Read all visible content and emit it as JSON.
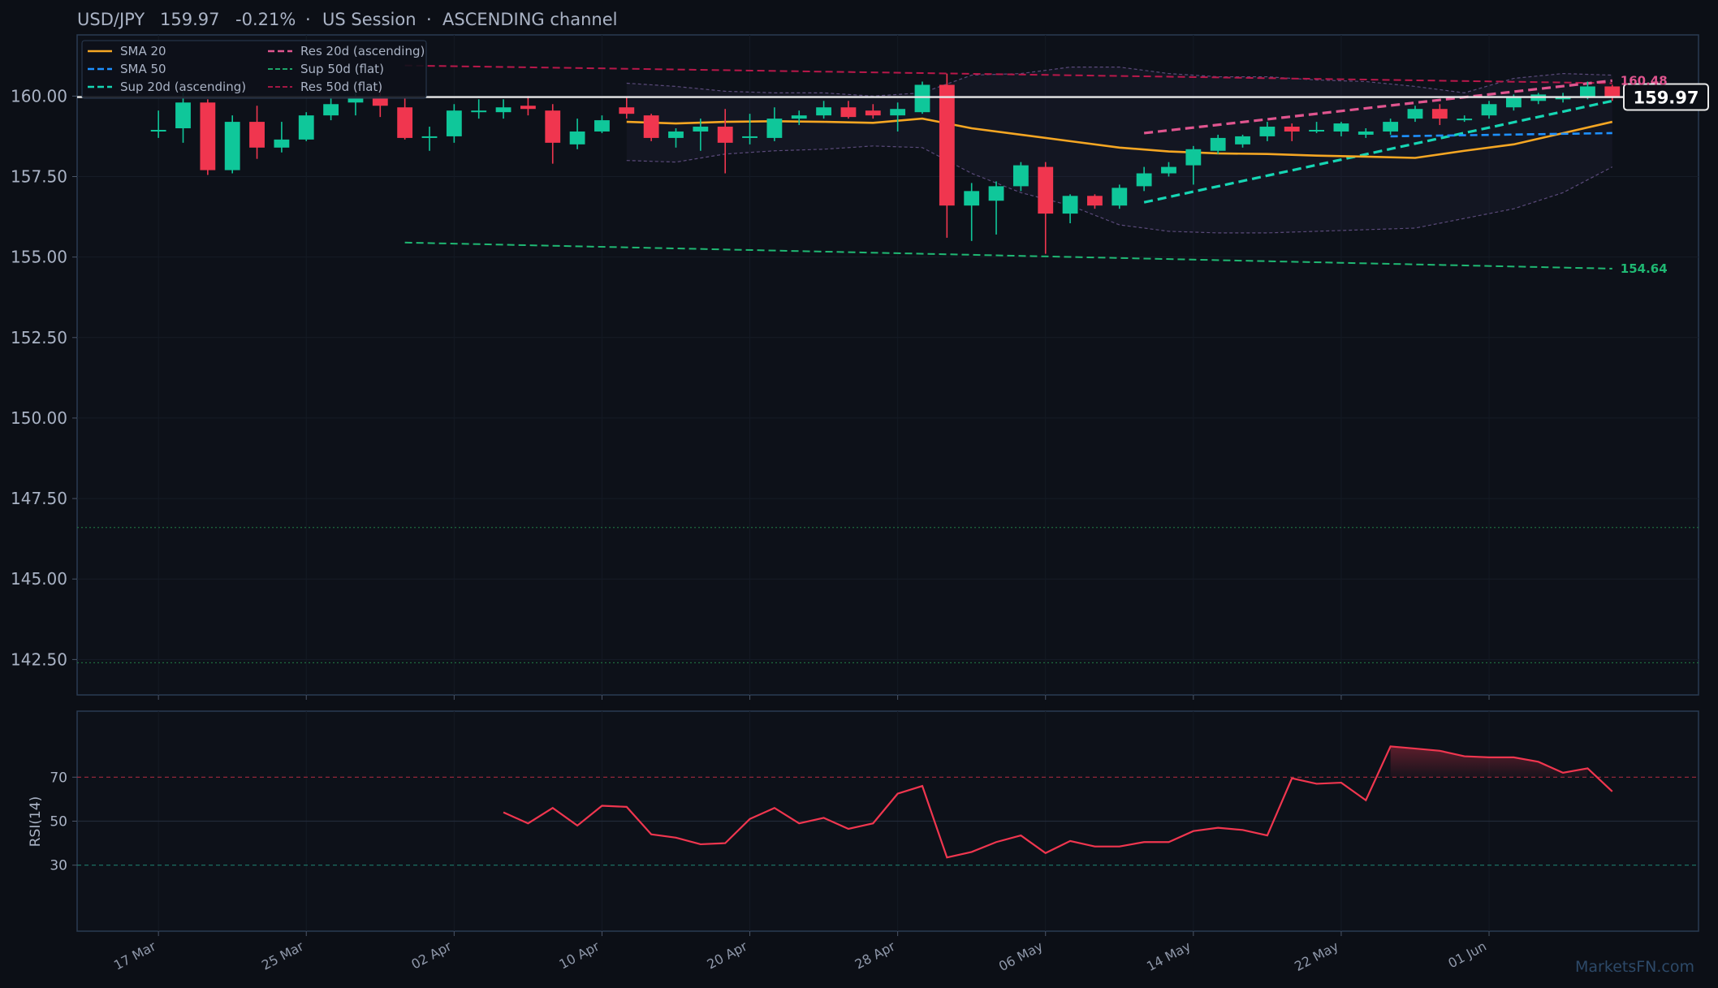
{
  "header": {
    "symbol": "USD/JPY",
    "price": "159.97",
    "change": "-0.21%",
    "session": "US Session",
    "channel": "ASCENDING channel",
    "separator": "·"
  },
  "watermark": "MarketsFN.com",
  "colors": {
    "background": "#0c0f16",
    "panel_border": "#2a3b52",
    "up": "#0fc79a",
    "down": "#f0364f",
    "sma20": "#f5a623",
    "sma50": "#1e90ff",
    "support_asc": "#16d6b4",
    "resistance_asc": "#e0558f",
    "support_flat": "#1fb873",
    "resistance_flat": "#b8184a",
    "rsi": "#f0364f",
    "price_line": "#e8e8e8"
  },
  "legend": [
    {
      "label": "SMA 20",
      "color": "#f5a623",
      "style": "solid"
    },
    {
      "label": "SMA 50",
      "color": "#1e90ff",
      "style": "dashed"
    },
    {
      "label": "Sup 20d (ascending)",
      "color": "#16d6b4",
      "style": "dashed"
    },
    {
      "label": "Res 20d (ascending)",
      "color": "#e0558f",
      "style": "dashed"
    },
    {
      "label": "Sup 50d (flat)",
      "color": "#1fb873",
      "style": "dashed-thin"
    },
    {
      "label": "Res 50d (flat)",
      "color": "#b8184a",
      "style": "dashed-thin"
    }
  ],
  "chart_data": {
    "type": "candlestick",
    "title": "USD/JPY   159.97   -0.21%  ·  US Session  ·  ASCENDING channel",
    "x_axis": {
      "tick_labels": [
        "17 Mar",
        "25 Mar",
        "02 Apr",
        "10 Apr",
        "20 Apr",
        "28 Apr",
        "06 May",
        "14 May",
        "22 May",
        "01 Jun"
      ],
      "tick_index": [
        0,
        6,
        12,
        18,
        24,
        30,
        36,
        42,
        48,
        54
      ],
      "index_range": [
        -3.3,
        62.5
      ]
    },
    "y_axis": {
      "range": [
        141.4,
        161.9
      ],
      "ticks": [
        "142.50",
        "145.00",
        "147.50",
        "150.00",
        "152.50",
        "155.00",
        "157.50",
        "160.00"
      ],
      "tick_values": [
        142.5,
        145.0,
        147.5,
        150.0,
        152.5,
        155.0,
        157.5,
        160.0
      ]
    },
    "candles": [
      {
        "o": 158.95,
        "h": 159.55,
        "l": 158.7,
        "c": 158.95
      },
      {
        "o": 159.0,
        "h": 160.1,
        "l": 158.55,
        "c": 159.8
      },
      {
        "o": 159.8,
        "h": 159.9,
        "l": 157.55,
        "c": 157.7
      },
      {
        "o": 157.7,
        "h": 159.4,
        "l": 157.6,
        "c": 159.2
      },
      {
        "o": 159.2,
        "h": 159.7,
        "l": 158.05,
        "c": 158.4
      },
      {
        "o": 158.4,
        "h": 159.2,
        "l": 158.25,
        "c": 158.65
      },
      {
        "o": 158.65,
        "h": 159.5,
        "l": 158.6,
        "c": 159.4
      },
      {
        "o": 159.4,
        "h": 160.0,
        "l": 159.25,
        "c": 159.75
      },
      {
        "o": 159.8,
        "h": 160.1,
        "l": 159.4,
        "c": 159.95
      },
      {
        "o": 159.95,
        "h": 160.3,
        "l": 159.35,
        "c": 159.7
      },
      {
        "o": 159.65,
        "h": 159.95,
        "l": 158.65,
        "c": 158.7
      },
      {
        "o": 158.7,
        "h": 159.05,
        "l": 158.3,
        "c": 158.75
      },
      {
        "o": 158.75,
        "h": 159.75,
        "l": 158.55,
        "c": 159.55
      },
      {
        "o": 159.5,
        "h": 159.9,
        "l": 159.3,
        "c": 159.55
      },
      {
        "o": 159.5,
        "h": 159.9,
        "l": 159.3,
        "c": 159.65
      },
      {
        "o": 159.7,
        "h": 160.0,
        "l": 159.4,
        "c": 159.6
      },
      {
        "o": 159.55,
        "h": 159.75,
        "l": 157.9,
        "c": 158.55
      },
      {
        "o": 158.5,
        "h": 159.3,
        "l": 158.35,
        "c": 158.9
      },
      {
        "o": 158.9,
        "h": 159.4,
        "l": 158.85,
        "c": 159.25
      },
      {
        "o": 159.65,
        "h": 159.95,
        "l": 159.3,
        "c": 159.45
      },
      {
        "o": 159.4,
        "h": 159.45,
        "l": 158.6,
        "c": 158.7
      },
      {
        "o": 158.7,
        "h": 159.0,
        "l": 158.4,
        "c": 158.9
      },
      {
        "o": 158.9,
        "h": 159.3,
        "l": 158.3,
        "c": 159.05
      },
      {
        "o": 159.05,
        "h": 159.6,
        "l": 157.6,
        "c": 158.55
      },
      {
        "o": 158.7,
        "h": 159.45,
        "l": 158.5,
        "c": 158.75
      },
      {
        "o": 158.7,
        "h": 159.65,
        "l": 158.6,
        "c": 159.3
      },
      {
        "o": 159.3,
        "h": 159.55,
        "l": 159.1,
        "c": 159.4
      },
      {
        "o": 159.4,
        "h": 159.85,
        "l": 159.3,
        "c": 159.65
      },
      {
        "o": 159.65,
        "h": 159.85,
        "l": 159.3,
        "c": 159.35
      },
      {
        "o": 159.55,
        "h": 159.75,
        "l": 159.3,
        "c": 159.4
      },
      {
        "o": 159.4,
        "h": 159.8,
        "l": 158.9,
        "c": 159.6
      },
      {
        "o": 159.5,
        "h": 160.45,
        "l": 159.45,
        "c": 160.35
      },
      {
        "o": 160.35,
        "h": 160.7,
        "l": 155.6,
        "c": 156.6
      },
      {
        "o": 156.6,
        "h": 157.3,
        "l": 155.5,
        "c": 157.05
      },
      {
        "o": 156.75,
        "h": 157.35,
        "l": 155.7,
        "c": 157.2
      },
      {
        "o": 157.2,
        "h": 157.95,
        "l": 157.05,
        "c": 157.85
      },
      {
        "o": 157.8,
        "h": 157.95,
        "l": 155.1,
        "c": 156.35
      },
      {
        "o": 156.35,
        "h": 156.95,
        "l": 156.05,
        "c": 156.9
      },
      {
        "o": 156.9,
        "h": 156.95,
        "l": 156.5,
        "c": 156.6
      },
      {
        "o": 156.6,
        "h": 157.25,
        "l": 156.5,
        "c": 157.15
      },
      {
        "o": 157.2,
        "h": 157.8,
        "l": 157.05,
        "c": 157.6
      },
      {
        "o": 157.6,
        "h": 157.95,
        "l": 157.5,
        "c": 157.8
      },
      {
        "o": 157.85,
        "h": 158.45,
        "l": 157.25,
        "c": 158.35
      },
      {
        "o": 158.3,
        "h": 158.8,
        "l": 158.2,
        "c": 158.7
      },
      {
        "o": 158.5,
        "h": 158.8,
        "l": 158.4,
        "c": 158.75
      },
      {
        "o": 158.75,
        "h": 159.2,
        "l": 158.6,
        "c": 159.05
      },
      {
        "o": 159.05,
        "h": 159.15,
        "l": 158.6,
        "c": 158.9
      },
      {
        "o": 158.9,
        "h": 159.2,
        "l": 158.85,
        "c": 158.95
      },
      {
        "o": 158.9,
        "h": 159.2,
        "l": 158.75,
        "c": 159.15
      },
      {
        "o": 158.8,
        "h": 159.0,
        "l": 158.7,
        "c": 158.9
      },
      {
        "o": 158.9,
        "h": 159.3,
        "l": 158.8,
        "c": 159.2
      },
      {
        "o": 159.3,
        "h": 159.7,
        "l": 159.2,
        "c": 159.6
      },
      {
        "o": 159.6,
        "h": 159.75,
        "l": 159.1,
        "c": 159.3
      },
      {
        "o": 159.3,
        "h": 159.4,
        "l": 159.2,
        "c": 159.3
      },
      {
        "o": 159.4,
        "h": 159.85,
        "l": 159.3,
        "c": 159.75
      },
      {
        "o": 159.65,
        "h": 160.05,
        "l": 159.55,
        "c": 159.95
      },
      {
        "o": 159.85,
        "h": 160.1,
        "l": 159.75,
        "c": 160.05
      },
      {
        "o": 159.95,
        "h": 160.1,
        "l": 159.8,
        "c": 159.95
      },
      {
        "o": 159.95,
        "h": 160.45,
        "l": 159.9,
        "c": 160.3
      },
      {
        "o": 160.3,
        "h": 160.35,
        "l": 159.85,
        "c": 159.97
      }
    ],
    "overlays": {
      "sma20": {
        "x": [
          19,
          21,
          23,
          25,
          27,
          29,
          31,
          33,
          35,
          37,
          39,
          41,
          43,
          45,
          47,
          49,
          51,
          53,
          55,
          57,
          59
        ],
        "y": [
          159.2,
          159.15,
          159.2,
          159.22,
          159.2,
          159.17,
          159.3,
          159.0,
          158.8,
          158.6,
          158.4,
          158.28,
          158.22,
          158.2,
          158.15,
          158.12,
          158.08,
          158.3,
          158.5,
          158.85,
          159.2
        ]
      },
      "sma50": {
        "x": [
          50,
          59
        ],
        "y": [
          158.75,
          158.85
        ]
      },
      "sup_20d_ascending": {
        "x": [
          40,
          59
        ],
        "y": [
          156.7,
          159.85
        ]
      },
      "res_20d_ascending": {
        "x": [
          40,
          59
        ],
        "y": [
          158.85,
          160.48
        ]
      },
      "sup_50d_flat": {
        "x": [
          10,
          59
        ],
        "y": [
          155.45,
          154.64
        ]
      },
      "res_50d_flat": {
        "x": [
          10,
          59
        ],
        "y": [
          160.95,
          160.4
        ]
      }
    },
    "channel_band": {
      "x": [
        19,
        21,
        23,
        25,
        27,
        29,
        31,
        33,
        35,
        37,
        39,
        41,
        43,
        45,
        47,
        49,
        51,
        53,
        55,
        57,
        59
      ],
      "upper": [
        160.4,
        160.3,
        160.15,
        160.1,
        160.1,
        160.0,
        160.1,
        160.65,
        160.7,
        160.9,
        160.9,
        160.7,
        160.6,
        160.6,
        160.5,
        160.45,
        160.3,
        160.1,
        160.55,
        160.7,
        160.65
      ],
      "lower": [
        158.0,
        157.95,
        158.2,
        158.3,
        158.35,
        158.45,
        158.4,
        157.6,
        157.0,
        156.6,
        156.0,
        155.8,
        155.75,
        155.75,
        155.8,
        155.85,
        155.9,
        156.2,
        156.5,
        157.0,
        157.8
      ]
    },
    "price_level": {
      "value": 159.97,
      "label": "159.97"
    },
    "level_labels": [
      {
        "value": 160.48,
        "label": "160.48",
        "color": "#e0558f"
      },
      {
        "value": 154.64,
        "label": "154.64",
        "color": "#1fb873"
      }
    ],
    "reference_levels": [
      146.6,
      142.4
    ],
    "rsi": {
      "ylabel": "RSI(14)",
      "y_range": [
        0,
        100
      ],
      "ticks": [
        "30",
        "50",
        "70"
      ],
      "tick_values": [
        30,
        50,
        70
      ],
      "overbought": 70,
      "oversold": 30,
      "x_start": 14,
      "values": [
        54,
        49,
        56,
        48,
        57,
        56.5,
        44,
        42.5,
        39.5,
        40,
        51,
        56,
        49,
        51.5,
        46.5,
        49,
        62.5,
        66,
        33.5,
        36,
        40.5,
        43.5,
        35.5,
        41,
        38.5,
        38.5,
        40.5,
        40.5,
        45.5,
        47,
        46,
        43.5,
        69.5,
        67,
        67.5,
        59.5,
        84,
        83,
        82,
        79.5,
        79,
        79,
        77,
        72,
        74,
        63.5
      ]
    }
  }
}
